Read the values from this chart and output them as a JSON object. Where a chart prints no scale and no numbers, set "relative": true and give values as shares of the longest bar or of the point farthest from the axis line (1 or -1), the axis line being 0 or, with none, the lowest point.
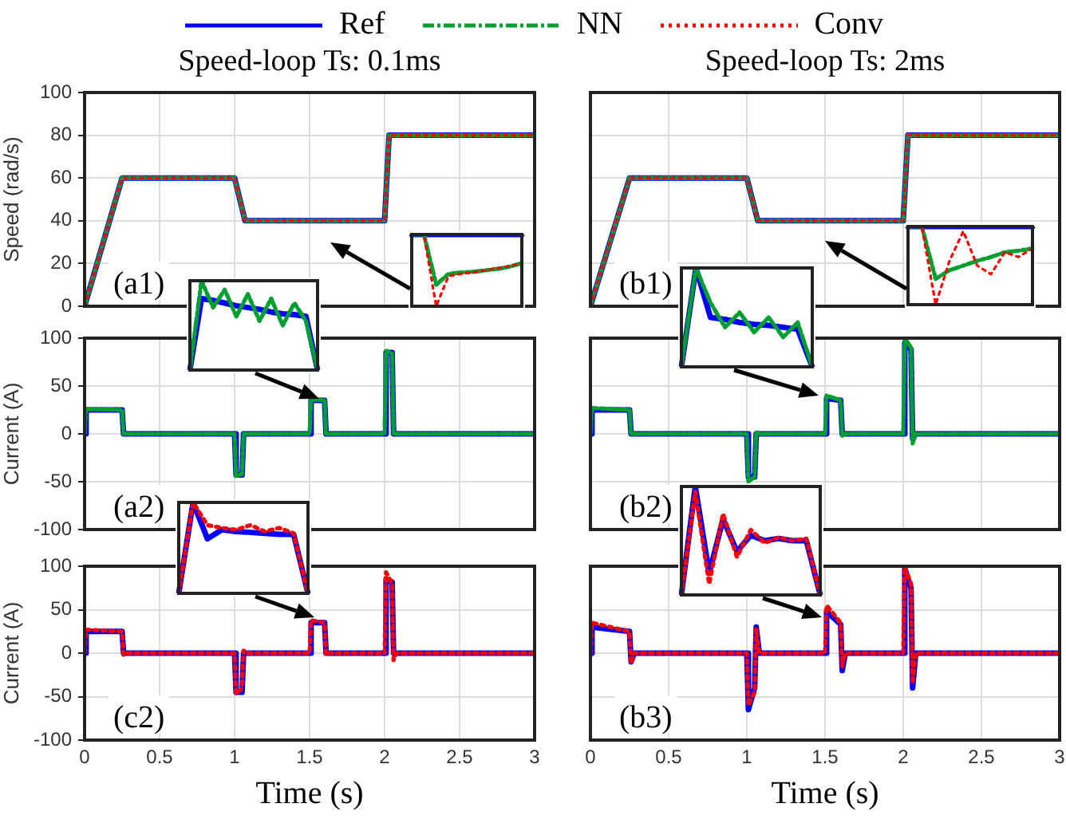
{
  "chart_data": [
    {
      "type": "line",
      "title": "Speed-loop Ts: 0.1ms",
      "ylabel": "Speed (rad/s)",
      "x": [
        0,
        0.25,
        1.0,
        1.07,
        2.0,
        2.03,
        3
      ],
      "xlim": [
        0,
        3
      ],
      "xticks": [
        0,
        0.5,
        1,
        1.5,
        2,
        2.5,
        3
      ],
      "ylim": [
        0,
        100
      ],
      "yticks": [
        0,
        20,
        40,
        60,
        80,
        100
      ],
      "grid": true,
      "tick_labels": "y",
      "legend": "top",
      "annotations": [
        "(a1)"
      ],
      "series": [
        {
          "name": "Ref",
          "color": "#0000ff",
          "line_style": "solid",
          "values": [
            0,
            60,
            60,
            40,
            40,
            80,
            80
          ]
        },
        {
          "name": "NN",
          "color": "#00a030",
          "line_style": "dashed",
          "values": [
            0,
            60,
            60,
            40,
            40,
            80,
            80
          ]
        },
        {
          "name": "Conv",
          "color": "#ff0000",
          "line_style": "dotted",
          "values": [
            0,
            60,
            60,
            40,
            40,
            80,
            80
          ]
        }
      ]
    },
    {
      "type": "line",
      "title": "Speed-loop Ts: 2ms",
      "x": [
        0,
        0.25,
        1.0,
        1.07,
        2.0,
        2.03,
        3
      ],
      "xlim": [
        0,
        3
      ],
      "xticks": [
        0,
        0.5,
        1,
        1.5,
        2,
        2.5,
        3
      ],
      "ylim": [
        0,
        100
      ],
      "yticks": [
        0,
        20,
        40,
        60,
        80,
        100
      ],
      "grid": true,
      "tick_labels": false,
      "annotations": [
        "(b1)"
      ],
      "series": [
        {
          "color": "#0000ff",
          "line_style": "solid",
          "values": [
            0,
            60,
            60,
            40,
            40,
            80,
            80
          ]
        },
        {
          "color": "#00a030",
          "line_style": "dashed",
          "values": [
            0,
            60,
            60,
            40,
            40,
            80,
            80
          ]
        },
        {
          "color": "#ff0000",
          "line_style": "dotted",
          "values": [
            0,
            60,
            60,
            40,
            40,
            80,
            80
          ]
        }
      ]
    },
    {
      "type": "line",
      "ylabel": "Current (A)",
      "x": [
        0,
        0.01,
        0.25,
        0.26,
        0.28,
        1.0,
        1.01,
        1.05,
        1.06,
        1.08,
        1.5,
        1.51,
        1.6,
        1.61,
        1.63,
        2.0,
        2.01,
        2.05,
        2.06,
        2.08,
        3
      ],
      "xlim": [
        0,
        3
      ],
      "xticks": [
        0,
        0.5,
        1,
        1.5,
        2,
        2.5,
        3
      ],
      "ylim": [
        -100,
        100
      ],
      "yticks": [
        -100,
        -50,
        0,
        50,
        100
      ],
      "grid": true,
      "tick_labels": "y",
      "annotations": [
        "(a2)"
      ],
      "series": [
        {
          "color": "#0000ff",
          "line_style": "solid",
          "values": [
            0,
            25,
            25,
            0,
            0,
            0,
            -43,
            -43,
            0,
            0,
            0,
            35,
            35,
            0,
            0,
            0,
            85,
            85,
            0,
            0,
            0
          ]
        },
        {
          "color": "#00a030",
          "line_style": "dashed",
          "values": [
            0,
            26,
            25,
            0,
            0,
            0,
            -44,
            -42,
            0,
            0,
            0,
            36,
            35,
            0,
            0,
            0,
            87,
            84,
            0,
            0,
            0
          ]
        }
      ]
    },
    {
      "type": "line",
      "x": [
        0,
        0.01,
        0.25,
        0.26,
        0.28,
        1.0,
        1.01,
        1.05,
        1.06,
        1.08,
        1.5,
        1.51,
        1.6,
        1.61,
        1.63,
        2.0,
        2.01,
        2.05,
        2.06,
        2.08,
        3
      ],
      "xlim": [
        0,
        3
      ],
      "xticks": [
        0,
        0.5,
        1,
        1.5,
        2,
        2.5,
        3
      ],
      "ylim": [
        -100,
        100
      ],
      "yticks": [
        -100,
        -50,
        0,
        50,
        100
      ],
      "grid": true,
      "tick_labels": false,
      "annotations": [
        "(b2)"
      ],
      "series": [
        {
          "color": "#0000ff",
          "line_style": "solid",
          "values": [
            0,
            25,
            25,
            0,
            0,
            0,
            -45,
            -45,
            0,
            0,
            0,
            37,
            35,
            0,
            0,
            0,
            95,
            88,
            -5,
            0,
            0
          ]
        },
        {
          "color": "#00a030",
          "line_style": "dashed",
          "values": [
            0,
            27,
            25,
            0,
            0,
            0,
            -50,
            -45,
            2,
            0,
            0,
            40,
            35,
            -2,
            0,
            0,
            100,
            90,
            -10,
            0,
            0
          ]
        }
      ]
    },
    {
      "type": "line",
      "xlabel": "Time (s)",
      "ylabel": "Current (A)",
      "x": [
        0,
        0.01,
        0.25,
        0.26,
        0.28,
        1.0,
        1.01,
        1.05,
        1.06,
        1.08,
        1.5,
        1.51,
        1.6,
        1.61,
        1.63,
        2.0,
        2.01,
        2.05,
        2.06,
        2.08,
        3
      ],
      "xlim": [
        0,
        3
      ],
      "xticks": [
        0,
        0.5,
        1,
        1.5,
        2,
        2.5,
        3
      ],
      "ylim": [
        -100,
        100
      ],
      "yticks": [
        -100,
        -50,
        0,
        50,
        100
      ],
      "grid": true,
      "annotations": [
        "(c2)"
      ],
      "series": [
        {
          "color": "#0000ff",
          "line_style": "solid",
          "values": [
            0,
            25,
            25,
            0,
            0,
            0,
            -45,
            -45,
            0,
            0,
            0,
            35,
            35,
            0,
            0,
            0,
            85,
            82,
            0,
            0,
            0
          ]
        },
        {
          "color": "#ff0000",
          "line_style": "dotted",
          "values": [
            0,
            27,
            25,
            -2,
            0,
            0,
            -47,
            -40,
            3,
            0,
            0,
            38,
            35,
            -2,
            0,
            0,
            93,
            80,
            -8,
            0,
            0
          ]
        }
      ]
    },
    {
      "type": "line",
      "xlabel": "Time (s)",
      "x": [
        0,
        0.01,
        0.25,
        0.26,
        0.28,
        1.0,
        1.01,
        1.05,
        1.06,
        1.08,
        1.5,
        1.51,
        1.6,
        1.61,
        1.63,
        2.0,
        2.01,
        2.05,
        2.06,
        2.08,
        3
      ],
      "xlim": [
        0,
        3
      ],
      "xticks": [
        0,
        0.5,
        1,
        1.5,
        2,
        2.5,
        3
      ],
      "ylim": [
        -100,
        100
      ],
      "yticks": [
        -100,
        -50,
        0,
        50,
        100
      ],
      "grid": true,
      "tick_labels": "x",
      "annotations": [
        "(b3)"
      ],
      "series": [
        {
          "color": "#0000ff",
          "line_style": "solid",
          "values": [
            0,
            30,
            25,
            -10,
            0,
            0,
            -65,
            -40,
            30,
            0,
            0,
            48,
            33,
            -20,
            0,
            0,
            97,
            75,
            -40,
            0,
            0
          ]
        },
        {
          "color": "#ff0000",
          "line_style": "dotted",
          "values": [
            0,
            35,
            25,
            -12,
            0,
            0,
            -60,
            -45,
            28,
            0,
            0,
            55,
            35,
            -15,
            0,
            0,
            100,
            80,
            -35,
            0,
            0
          ]
        }
      ]
    },
    {
      "type": "line",
      "relative": true,
      "categories": [
        null,
        null,
        null,
        null,
        null,
        null,
        null,
        null,
        null,
        null
      ],
      "series": [
        {
          "color": "#0000ff",
          "line_style": "solid",
          "values": [
            1,
            1,
            1,
            1,
            1,
            1,
            1,
            1,
            1,
            1
          ]
        },
        {
          "color": "#00a030",
          "line_style": "dashed",
          "values": [
            1,
            1,
            0.3,
            0.45,
            0.47,
            0.48,
            0.5,
            0.52,
            0.55,
            0.6
          ]
        },
        {
          "color": "#ff0000",
          "line_style": "dotted",
          "values": [
            1,
            1,
            0,
            0.42,
            0.45,
            0.47,
            0.5,
            0.53,
            0.56,
            0.6
          ]
        }
      ]
    },
    {
      "type": "line",
      "relative": true,
      "categories": [
        null,
        null,
        null,
        null,
        null,
        null,
        null,
        null,
        null,
        null
      ],
      "series": [
        {
          "color": "#0000ff",
          "line_style": "solid",
          "values": [
            1,
            1,
            1,
            1,
            1,
            1,
            1,
            1,
            1,
            1
          ]
        },
        {
          "color": "#00a030",
          "line_style": "dashed",
          "values": [
            1,
            1,
            0.33,
            0.44,
            0.5,
            0.56,
            0.61,
            0.67,
            0.69,
            0.72
          ]
        },
        {
          "color": "#ff0000",
          "line_style": "dotted",
          "values": [
            1,
            1,
            0,
            0.56,
            0.94,
            0.5,
            0.39,
            0.67,
            0.61,
            0.72
          ]
        }
      ]
    },
    {
      "type": "line",
      "relative": true,
      "categories": [
        null,
        null,
        null,
        null,
        null,
        null,
        null,
        null,
        null,
        null,
        null,
        null
      ],
      "series": [
        {
          "color": "#0000ff",
          "line_style": "solid",
          "values": [
            0,
            0.8,
            0.78,
            0.75,
            0.72,
            0.7,
            0.68,
            0.65,
            0.63,
            0.62,
            0.6,
            0
          ]
        },
        {
          "color": "#00a030",
          "line_style": "dashed",
          "values": [
            0,
            1,
            0.7,
            0.9,
            0.6,
            0.85,
            0.55,
            0.8,
            0.5,
            0.75,
            0.55,
            0
          ]
        }
      ]
    },
    {
      "type": "line",
      "relative": true,
      "categories": [
        null,
        null,
        null,
        null,
        null,
        null,
        null,
        null,
        null,
        null
      ],
      "series": [
        {
          "color": "#0000ff",
          "line_style": "solid",
          "values": [
            0,
            1,
            0.5,
            0.48,
            0.45,
            0.43,
            0.42,
            0.4,
            0.38,
            0
          ]
        },
        {
          "color": "#00a030",
          "line_style": "dashed",
          "values": [
            0,
            1,
            0.65,
            0.4,
            0.55,
            0.35,
            0.5,
            0.3,
            0.45,
            0
          ]
        }
      ]
    },
    {
      "type": "line",
      "relative": true,
      "categories": [
        null,
        null,
        null,
        null,
        null,
        null,
        null,
        null,
        null,
        null
      ],
      "series": [
        {
          "color": "#0000ff",
          "line_style": "solid",
          "values": [
            0,
            1,
            0.6,
            0.7,
            0.68,
            0.67,
            0.66,
            0.65,
            0.65,
            0
          ]
        },
        {
          "color": "#ff0000",
          "line_style": "dotted",
          "values": [
            0,
            1,
            0.75,
            0.72,
            0.7,
            0.75,
            0.68,
            0.72,
            0.66,
            0
          ]
        }
      ]
    },
    {
      "type": "line",
      "relative": true,
      "categories": [
        null,
        null,
        null,
        null,
        null,
        null,
        null,
        null,
        null,
        null,
        null
      ],
      "series": [
        {
          "color": "#0000ff",
          "line_style": "solid",
          "values": [
            0,
            1,
            0.2,
            0.7,
            0.4,
            0.55,
            0.5,
            0.52,
            0.5,
            0.5,
            0
          ]
        },
        {
          "color": "#ff0000",
          "line_style": "dotted",
          "values": [
            0,
            0.95,
            0.1,
            0.75,
            0.35,
            0.6,
            0.48,
            0.53,
            0.5,
            0.52,
            0
          ]
        }
      ]
    }
  ]
}
